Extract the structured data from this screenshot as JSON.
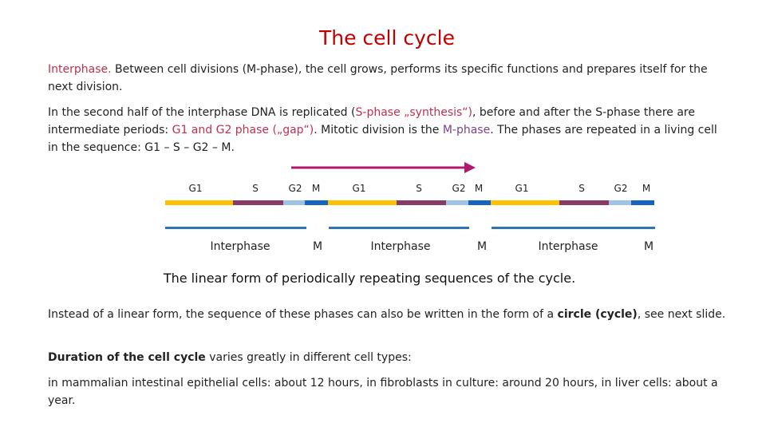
{
  "slide": {
    "title": "The cell cycle"
  },
  "paragraphs": {
    "p1": {
      "highlight": "Interphase.",
      "rest": " Between cell divisions (M-phase), the cell grows, performs its specific functions and prepares itself for the next division."
    },
    "p2": {
      "t1": "In the second half of the interphase DNA is replicated (",
      "s_phase": "S-phase „synthesis“)",
      "t2": ", before and after the S-phase there are intermediate periods: ",
      "g_phases": "G1 and G2 phase („gap“)",
      "t3": ". Mitotic division is the ",
      "m_phase": "M-phase",
      "t4": ". The phases are repeated in a living cell  in the sequence: G1 – S – G2 – M."
    },
    "p3": {
      "t1": "Instead of a linear form, the sequence of these phases can also be written in the form of a ",
      "bold": "circle (cycle)",
      "t2": ", see next slide."
    },
    "p4": {
      "bold": "Duration of the cell cycle",
      "rest": " varies greatly in different cell types:"
    },
    "p5": {
      "text": "in mammalian intestinal epithelial cells: about 12 hours, in fibroblasts in culture: around 20 hours, in liver cells: about a year."
    }
  },
  "diagram": {
    "phase_labels": {
      "g1": "G1",
      "s": "S",
      "g2": "G2",
      "m": "M"
    },
    "interphase_label": "Interphase",
    "m_label": "M",
    "caption": "The linear form of periodically repeating sequences of the cycle.",
    "colors": {
      "g1": "#ffc000",
      "s": "#8b3a68",
      "g2": "#9dc3e6",
      "m": "#1565c0",
      "underline": "#2e75b6",
      "arrow": "#b0186e"
    }
  }
}
